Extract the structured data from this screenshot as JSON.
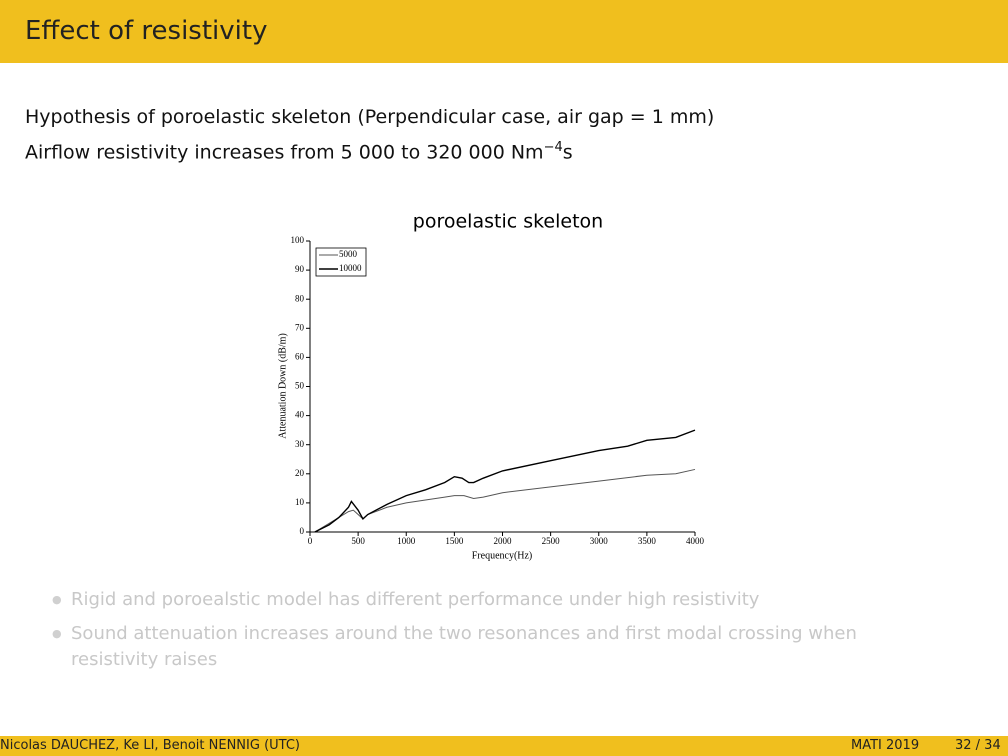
{
  "header": {
    "title": "Effect of resistivity"
  },
  "body": {
    "line1": "Hypothesis of poroelastic skeleton (Perpendicular case, air gap = 1 mm)",
    "line2": {
      "text": "Airflow resistivity increases from 5 000 to 320 000 Nm",
      "sup": "−4",
      "tail": "s"
    }
  },
  "chart_data": {
    "type": "line",
    "title": "poroelastic skeleton",
    "xlabel": "Frequency(Hz)",
    "ylabel": "Attenuation Down (dB/m)",
    "xlim": [
      0,
      4000
    ],
    "ylim": [
      0,
      100
    ],
    "xticks": [
      0,
      500,
      1000,
      1500,
      2000,
      2500,
      3000,
      3500,
      4000
    ],
    "yticks": [
      0,
      10,
      20,
      30,
      40,
      50,
      60,
      70,
      80,
      90,
      100
    ],
    "legend": "upper left",
    "series": [
      {
        "name": "5000",
        "color": "#555555",
        "x": [
          50,
          200,
          300,
          400,
          450,
          500,
          550,
          600,
          800,
          1000,
          1200,
          1400,
          1500,
          1600,
          1700,
          1800,
          2000,
          2500,
          3000,
          3500,
          3800,
          4000
        ],
        "values": [
          0,
          3,
          5,
          7,
          7.5,
          6,
          4.5,
          6,
          8.5,
          10,
          11,
          12,
          12.5,
          12.5,
          11.5,
          12,
          13.5,
          15.5,
          17.5,
          19.5,
          20,
          21.5
        ]
      },
      {
        "name": "10000",
        "color": "#000000",
        "x": [
          50,
          200,
          300,
          400,
          430,
          500,
          550,
          600,
          800,
          1000,
          1200,
          1400,
          1500,
          1580,
          1650,
          1700,
          1800,
          2000,
          2500,
          3000,
          3300,
          3500,
          3800,
          4000
        ],
        "values": [
          0,
          2.5,
          5,
          8.5,
          10.5,
          7.5,
          4.5,
          6,
          9.5,
          12.5,
          14.5,
          17,
          19,
          18.5,
          17,
          17,
          18.5,
          21,
          24.5,
          28,
          29.5,
          31.5,
          32.5,
          35
        ]
      }
    ]
  },
  "bullets": [
    "Rigid and poroealstic model has different performance under high resistivity",
    "Sound attenuation increases around the two resonances and first modal crossing when resistivity raises"
  ],
  "footer": {
    "authors": "Nicolas DAUCHEZ, Ke LI, Benoit NENNIG (UTC)",
    "event": "MATI 2019",
    "page": "32 / 34"
  }
}
